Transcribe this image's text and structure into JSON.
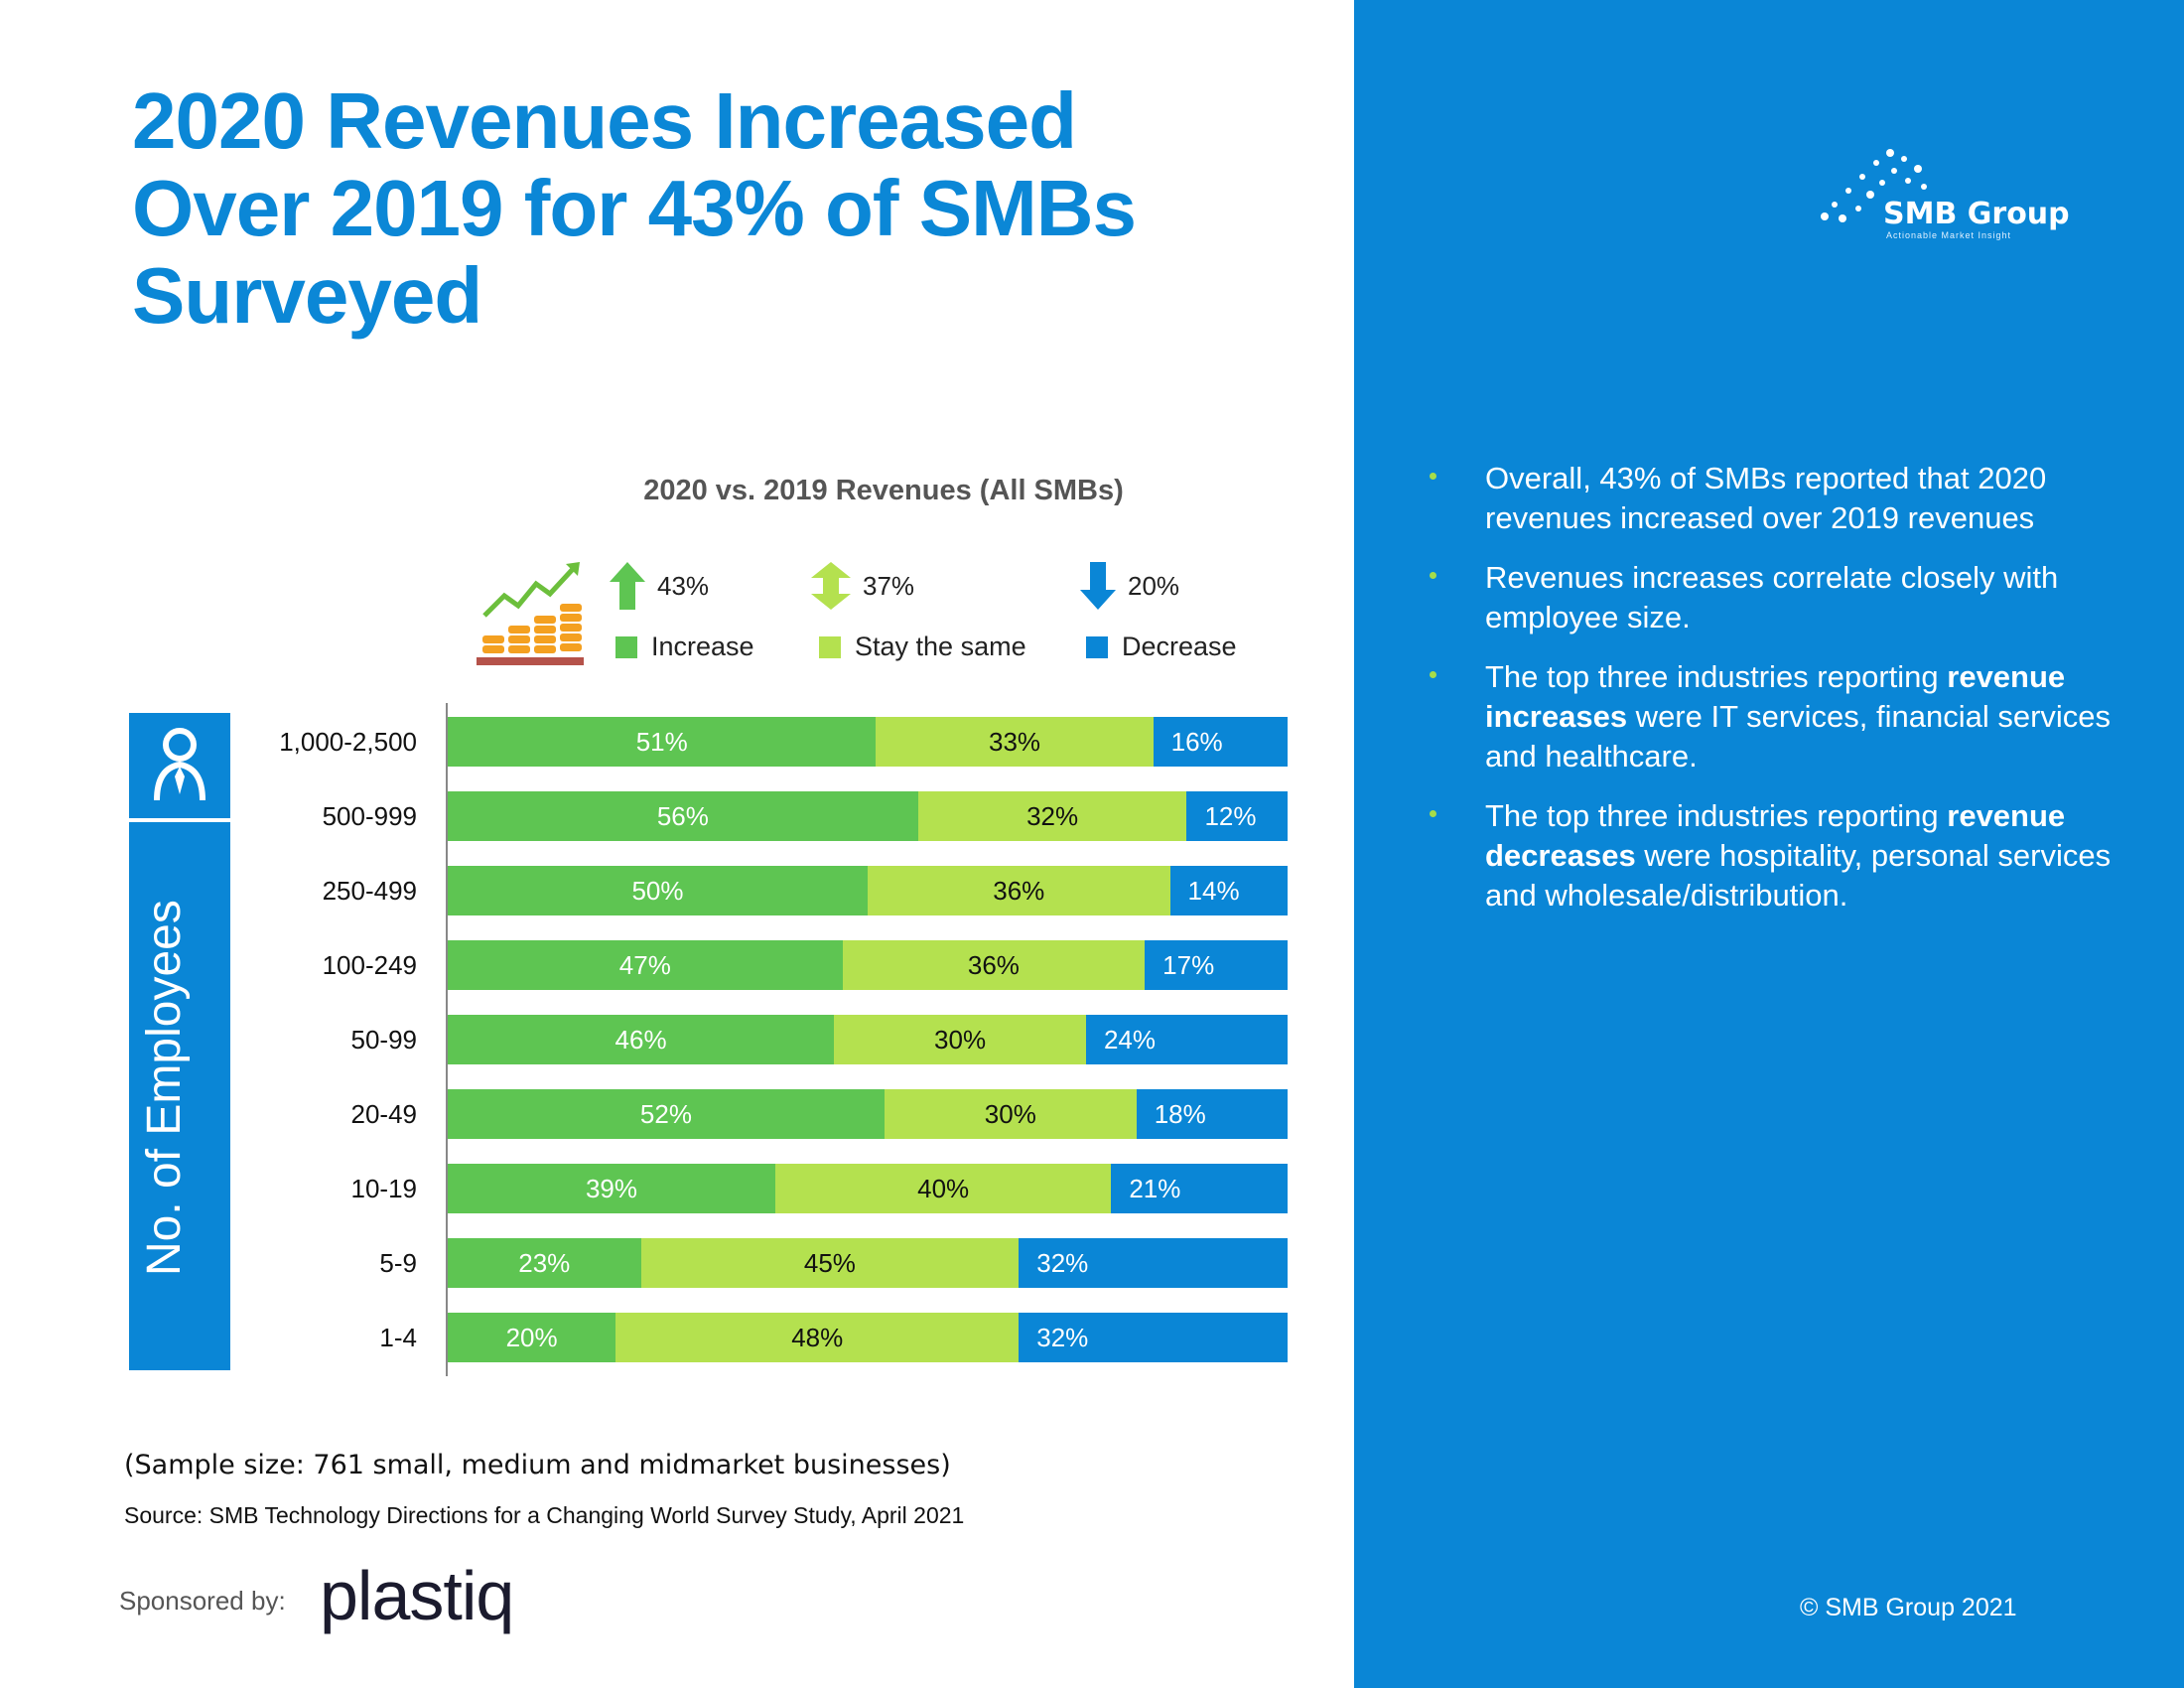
{
  "title": "2020 Revenues Increased Over 2019 for 43% of SMBs Surveyed",
  "colors": {
    "increase": "#5ec552",
    "same": "#b4e14f",
    "decrease": "#0a86d6",
    "accent": "#0b87d6",
    "panel": "#0a86d6"
  },
  "summary": {
    "increase": "43%",
    "same": "37%",
    "decrease": "20%"
  },
  "axis_box_label": "No. of Employees",
  "chart_data": {
    "type": "bar",
    "orientation": "horizontal",
    "stacked": true,
    "title": "2020 vs. 2019 Revenues (All SMBs)",
    "xlabel": "",
    "ylabel": "No. of Employees",
    "xlim": [
      0,
      100
    ],
    "legend": [
      "Increase",
      "Stay the same",
      "Decrease"
    ],
    "legend_position": "top",
    "categories": [
      "1,000-2,500",
      "500-999",
      "250-499",
      "100-249",
      "50-99",
      "20-49",
      "10-19",
      "5-9",
      "1-4"
    ],
    "series": [
      {
        "name": "Increase",
        "values": [
          51,
          56,
          50,
          47,
          46,
          52,
          39,
          23,
          20
        ]
      },
      {
        "name": "Stay the same",
        "values": [
          33,
          32,
          36,
          36,
          30,
          30,
          40,
          45,
          48
        ]
      },
      {
        "name": "Decrease",
        "values": [
          16,
          12,
          14,
          17,
          24,
          18,
          21,
          32,
          32
        ]
      }
    ]
  },
  "sample_note": "(Sample size: 761 small, medium and midmarket businesses)",
  "source": "Source: SMB Technology Directions for a Changing World Survey Study, April 2021",
  "sponsored_label": "Sponsored by:",
  "sponsor": "plastiq",
  "brand": {
    "name": "SMB Group",
    "tagline": "Actionable Market Insight"
  },
  "bullets": [
    {
      "text": [
        {
          "t": "Overall, 43% of SMBs reported that 2020 revenues increased over 2019 revenues",
          "b": false
        }
      ]
    },
    {
      "text": [
        {
          "t": "Revenues increases correlate closely with employee size.",
          "b": false
        }
      ]
    },
    {
      "text": [
        {
          "t": "The top three industries reporting ",
          "b": false
        },
        {
          "t": "revenue increases",
          "b": true
        },
        {
          "t": " were IT services, financial services and healthcare.",
          "b": false
        }
      ]
    },
    {
      "text": [
        {
          "t": "The top three industries reporting ",
          "b": false
        },
        {
          "t": "revenue decreases",
          "b": true
        },
        {
          "t": " were hospitality, personal services and wholesale/distribution.",
          "b": false
        }
      ]
    }
  ],
  "copyright": "© SMB Group 2021"
}
